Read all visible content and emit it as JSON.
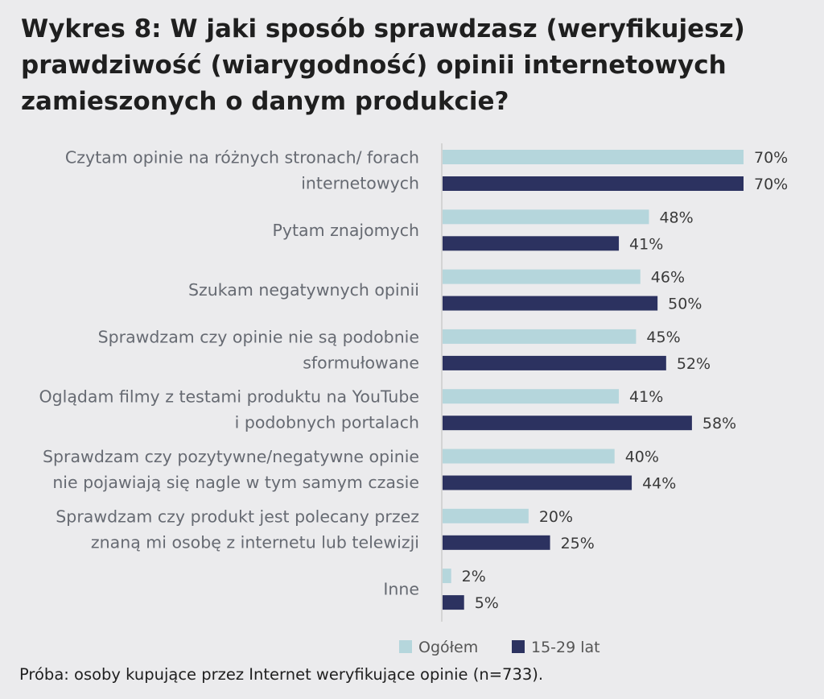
{
  "title": "Wykres 8: W jaki sposób sprawdzasz (weryfikujesz) prawdziwość (wiarygodność) opinii internetowych zamieszonych o danym produkcie?",
  "source": "Próba: osoby kupujące przez Internet weryfikujące opinie (n=733).",
  "colors": {
    "series1": "#b5d6dc",
    "series2": "#2c3260",
    "axis": "#cccccc"
  },
  "chart_data": {
    "type": "bar",
    "orientation": "horizontal",
    "categories": [
      [
        "Czytam opinie na różnych stronach/ forach",
        "internetowych"
      ],
      [
        "Pytam znajomych"
      ],
      [
        "Szukam negatywnych opinii"
      ],
      [
        "Sprawdzam czy opinie nie są podobnie",
        "sformułowane"
      ],
      [
        "Oglądam filmy z testami produktu na YouTube",
        "i podobnych portalach"
      ],
      [
        "Sprawdzam czy pozytywne/negatywne opinie",
        "nie pojawiają się nagle w tym samym czasie"
      ],
      [
        "Sprawdzam czy produkt jest polecany przez",
        "znaną mi osobę z internetu lub telewizji"
      ],
      [
        "Inne"
      ]
    ],
    "series": [
      {
        "name": "Ogółem",
        "values": [
          70,
          48,
          46,
          45,
          41,
          40,
          20,
          2
        ],
        "labels": [
          "70%",
          "48%",
          "46%",
          "45%",
          "41%",
          "40%",
          "20%",
          "2%"
        ]
      },
      {
        "name": "15-29 lat",
        "values": [
          70,
          41,
          50,
          52,
          58,
          44,
          25,
          5
        ],
        "labels": [
          "70%",
          "41%",
          "50%",
          "52%",
          "58%",
          "44%",
          "25%",
          "5%"
        ]
      }
    ],
    "unit": "%",
    "legend": "bottom",
    "grid": false
  }
}
